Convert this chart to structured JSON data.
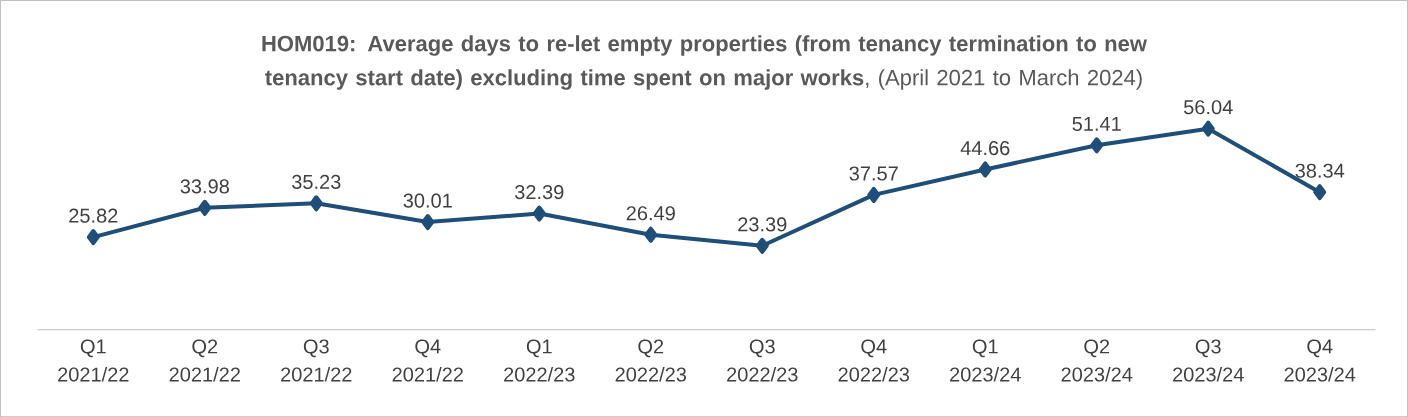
{
  "chart_data": {
    "type": "line",
    "title": "**HOM019: Average days to re-let empty properties (from tenancy termination to new tenancy start date) excluding time spent on major works**, (April 2021 to March 2024)",
    "categories": [
      "Q1 2021/22",
      "Q2 2021/22",
      "Q3 2021/22",
      "Q4 2021/22",
      "Q1 2022/23",
      "Q2 2022/23",
      "Q3 2022/23",
      "Q4 2022/23",
      "Q1 2023/24",
      "Q2 2023/24",
      "Q3 2023/24",
      "Q4 2023/24"
    ],
    "values": [
      25.82,
      33.98,
      35.23,
      30.01,
      32.39,
      26.49,
      23.39,
      37.57,
      44.66,
      51.41,
      56.04,
      38.34
    ],
    "color": "#1f4e79",
    "marker": "diamond",
    "line_style": "solid",
    "data_labels": true
  }
}
